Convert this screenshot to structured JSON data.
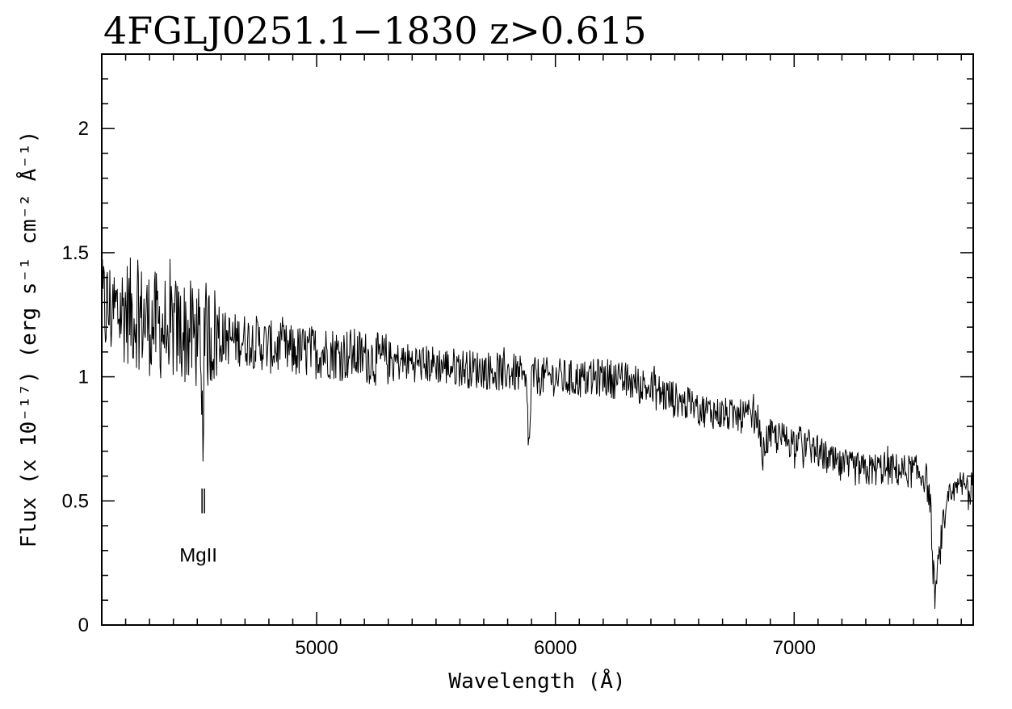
{
  "chart_data": {
    "type": "line",
    "title": "4FGLJ0251.1−1830 z>0.615",
    "xlabel": "Wavelength (Å)",
    "ylabel": "Flux (x 10⁻¹⁷) (erg s⁻¹ cm⁻² Å⁻¹)",
    "xlim": [
      4100,
      7750
    ],
    "ylim": [
      0,
      2.3
    ],
    "x_ticks": [
      5000,
      6000,
      7000
    ],
    "x_tick_labels": [
      "5000",
      "6000",
      "7000"
    ],
    "y_ticks": [
      0,
      0.5,
      1,
      1.5,
      2
    ],
    "y_tick_labels": [
      "0",
      "0.5",
      "1",
      "1.5",
      "2"
    ],
    "grid": false,
    "series": [
      {
        "x": [
          4100,
          4150,
          4200,
          4250,
          4300,
          4350,
          4400,
          4450,
          4500,
          4510,
          4520,
          4530,
          4540,
          4550,
          4600,
          4650,
          4700,
          4750,
          4800,
          4850,
          4900,
          4950,
          5000,
          5050,
          5100,
          5150,
          5200,
          5250,
          5300,
          5350,
          5400,
          5450,
          5500,
          5550,
          5600,
          5650,
          5700,
          5750,
          5800,
          5850,
          5880,
          5890,
          5900,
          5950,
          6000,
          6050,
          6100,
          6150,
          6200,
          6250,
          6300,
          6350,
          6400,
          6450,
          6500,
          6550,
          6600,
          6650,
          6700,
          6750,
          6800,
          6850,
          6860,
          6870,
          6880,
          6900,
          6950,
          7000,
          7050,
          7100,
          7150,
          7200,
          7250,
          7300,
          7350,
          7400,
          7450,
          7500,
          7550,
          7570,
          7580,
          7590,
          7600,
          7620,
          7650,
          7700,
          7750
        ],
        "y": [
          1.28,
          1.26,
          1.27,
          1.25,
          1.22,
          1.2,
          1.19,
          1.18,
          1.16,
          1.1,
          0.72,
          1.1,
          1.15,
          1.17,
          1.16,
          1.15,
          1.15,
          1.14,
          1.12,
          1.11,
          1.1,
          1.1,
          1.1,
          1.1,
          1.09,
          1.09,
          1.08,
          1.07,
          1.07,
          1.06,
          1.06,
          1.05,
          1.05,
          1.04,
          1.04,
          1.03,
          1.03,
          1.02,
          1.02,
          1.01,
          0.95,
          0.68,
          1.0,
          1.0,
          1.0,
          0.99,
          0.99,
          0.99,
          1.0,
          0.99,
          0.98,
          0.97,
          0.95,
          0.93,
          0.91,
          0.89,
          0.87,
          0.86,
          0.85,
          0.84,
          0.84,
          0.83,
          0.72,
          0.68,
          0.74,
          0.76,
          0.75,
          0.74,
          0.73,
          0.7,
          0.66,
          0.63,
          0.63,
          0.62,
          0.63,
          0.63,
          0.62,
          0.62,
          0.6,
          0.5,
          0.25,
          0.12,
          0.2,
          0.38,
          0.5,
          0.56,
          0.55
        ]
      }
    ],
    "annotations": [
      {
        "text": "MgII",
        "x": 4525,
        "marker_y_range": [
          0.45,
          0.55
        ]
      }
    ]
  }
}
